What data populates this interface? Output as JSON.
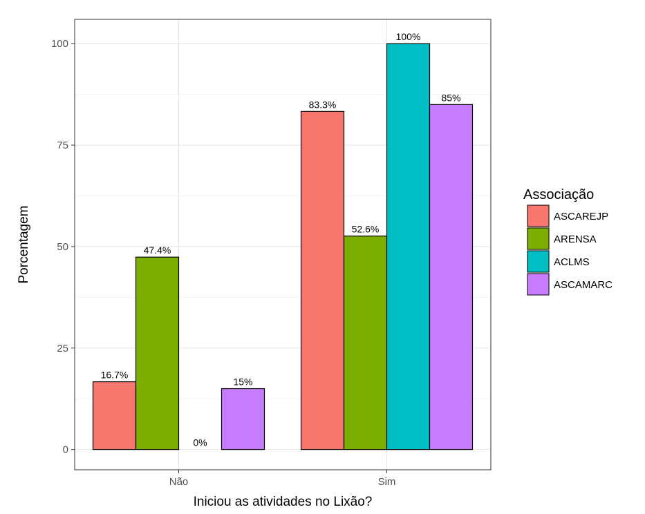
{
  "chart_data": {
    "type": "bar",
    "title": "",
    "xlabel": "Iniciou as atividades no Lixão?",
    "ylabel": "Porcentagem",
    "categories": [
      "Não",
      "Sim"
    ],
    "yticks": [
      0,
      25,
      50,
      75,
      100
    ],
    "ylim": [
      -5,
      106
    ],
    "grid": true,
    "legend": {
      "title": "Associação",
      "position": "right"
    },
    "series": [
      {
        "name": "ASCAREJP",
        "color": "#F8766D",
        "values": [
          16.7,
          83.3
        ],
        "labels": [
          "16.7%",
          "83.3%"
        ]
      },
      {
        "name": "ARENSA",
        "color": "#7CAE00",
        "values": [
          47.4,
          52.6
        ],
        "labels": [
          "47.4%",
          "52.6%"
        ]
      },
      {
        "name": "ACLMS",
        "color": "#00BFC4",
        "values": [
          0,
          100
        ],
        "labels": [
          "0%",
          "100%"
        ]
      },
      {
        "name": "ASCAMARC",
        "color": "#C77CFF",
        "values": [
          15,
          85
        ],
        "labels": [
          "15%",
          "85%"
        ]
      }
    ]
  }
}
